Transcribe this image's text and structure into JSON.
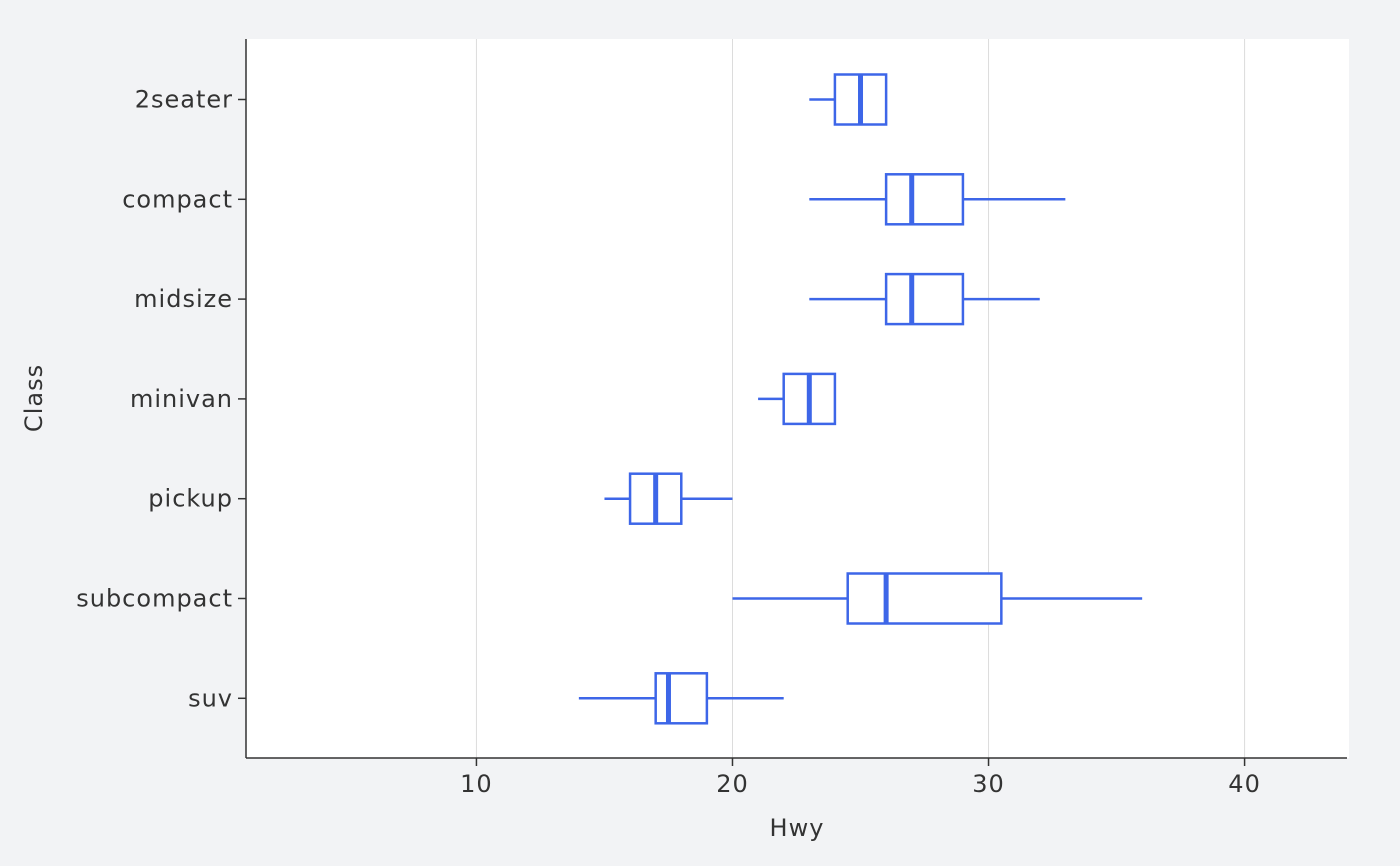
{
  "chart_data": {
    "type": "boxplot",
    "orientation": "horizontal",
    "xlabel": "Hwy",
    "ylabel": "Class",
    "xlim": [
      1,
      44
    ],
    "x_ticks": [
      10,
      20,
      30,
      40
    ],
    "grid": "vertical-major",
    "legend": "none",
    "categories": [
      "2seater",
      "compact",
      "midsize",
      "minivan",
      "pickup",
      "subcompact",
      "suv"
    ],
    "boxes": [
      {
        "category": "2seater",
        "whisker_low": 23,
        "q1": 24,
        "median": 25,
        "q3": 26,
        "whisker_high": 26
      },
      {
        "category": "compact",
        "whisker_low": 23,
        "q1": 26,
        "median": 27,
        "q3": 29,
        "whisker_high": 33
      },
      {
        "category": "midsize",
        "whisker_low": 23,
        "q1": 26,
        "median": 27,
        "q3": 29,
        "whisker_high": 32
      },
      {
        "category": "minivan",
        "whisker_low": 21,
        "q1": 22,
        "median": 23,
        "q3": 24,
        "whisker_high": 24
      },
      {
        "category": "pickup",
        "whisker_low": 15,
        "q1": 16,
        "median": 17,
        "q3": 18,
        "whisker_high": 20
      },
      {
        "category": "subcompact",
        "whisker_low": 20,
        "q1": 24.5,
        "median": 26,
        "q3": 30.5,
        "whisker_high": 36
      },
      {
        "category": "suv",
        "whisker_low": 14,
        "q1": 17,
        "median": 17.5,
        "q3": 19,
        "whisker_high": 22
      }
    ],
    "colors": {
      "box": "#3d66e8",
      "grid": "#dcdcdc",
      "axis": "#333333",
      "panel": "#ffffff",
      "background": "#f2f3f5"
    }
  }
}
